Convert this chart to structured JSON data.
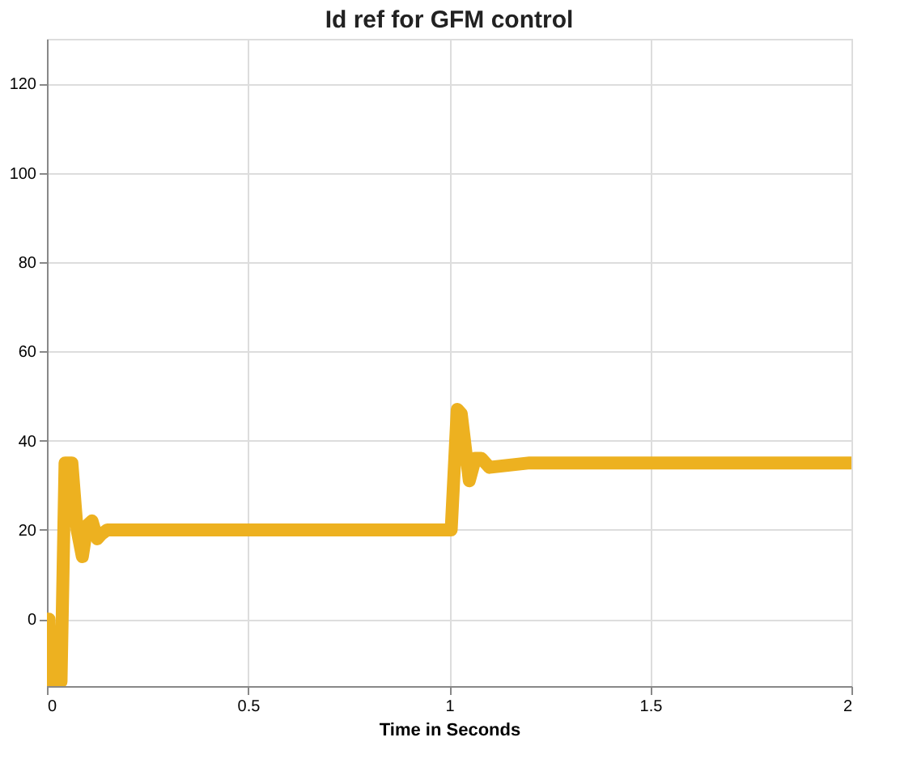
{
  "chart_data": {
    "type": "line",
    "title": "Id ref for GFM control",
    "xlabel": "Time in Seconds",
    "x": [
      0,
      0.005,
      0.008,
      0.035,
      0.045,
      0.062,
      0.075,
      0.088,
      0.1,
      0.112,
      0.125,
      0.135,
      0.15,
      0.2,
      0.3,
      0.4,
      0.5,
      0.6,
      0.7,
      0.8,
      0.9,
      1.0,
      1.005,
      1.02,
      1.03,
      1.05,
      1.065,
      1.08,
      1.1,
      1.2,
      1.4,
      1.6,
      1.8,
      2.0
    ],
    "series": [
      {
        "color": "#edb120",
        "values": [
          0,
          0,
          -14,
          -14,
          35,
          35,
          20,
          14,
          21,
          22,
          18,
          19,
          20,
          20,
          20,
          20,
          20,
          20,
          20,
          20,
          20,
          20,
          20,
          47,
          46,
          31,
          36,
          36,
          34,
          35,
          35,
          35,
          35,
          35
        ]
      }
    ],
    "xlim": [
      0,
      2
    ],
    "xticks": [
      0,
      0.5,
      1,
      1.5,
      2
    ],
    "ylim": [
      -15,
      130
    ],
    "yticks": [
      0,
      20,
      40,
      60,
      80,
      100,
      120
    ],
    "grid": true,
    "marker": "none",
    "line_style": "solid"
  }
}
